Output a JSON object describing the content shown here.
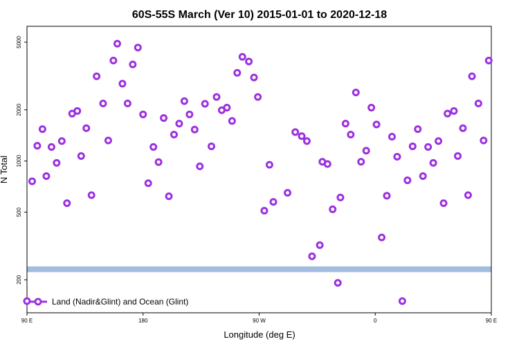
{
  "chart_data": {
    "type": "scatter",
    "title": "60S-55S March (Ver 10)   2015-01-01 to 2020-12-18",
    "xlabel": "Longitude (deg E)",
    "ylabel": "N Total",
    "y_scale": "log",
    "xlim": [
      90,
      450
    ],
    "ylim": [
      128,
      6200
    ],
    "x_ticks": [
      {
        "value": 90,
        "label": "90 E"
      },
      {
        "value": 180,
        "label": "180"
      },
      {
        "value": 270,
        "label": "90 W"
      },
      {
        "value": 360,
        "label": "0"
      },
      {
        "value": 450,
        "label": "90 E"
      },
      {
        "value": 540,
        "label": "180"
      }
    ],
    "y_ticks": [
      {
        "value": 200,
        "label": "200"
      },
      {
        "value": 500,
        "label": "500"
      },
      {
        "value": 1000,
        "label": "1000"
      },
      {
        "value": 2000,
        "label": "2000"
      },
      {
        "value": 5000,
        "label": "5000"
      }
    ],
    "grid": false,
    "band": {
      "low": 222,
      "high": 240,
      "color": "#a3bde0"
    },
    "marker_color": "#9b30e0",
    "legend": {
      "label": "Land (Nadir&Glint) and Ocean (Glint)",
      "position": "bottom-left"
    },
    "series": [
      {
        "name": "Land (Nadir&Glint) and Ocean (Glint)",
        "points": [
          [
            90,
            150
          ],
          [
            94,
            760
          ],
          [
            98,
            1230
          ],
          [
            102,
            1540
          ],
          [
            105,
            815
          ],
          [
            109,
            1210
          ],
          [
            113,
            975
          ],
          [
            117,
            1310
          ],
          [
            121,
            565
          ],
          [
            125,
            1900
          ],
          [
            129,
            1970
          ],
          [
            132,
            1070
          ],
          [
            136,
            1560
          ],
          [
            140,
            630
          ],
          [
            144,
            3150
          ],
          [
            149,
            2180
          ],
          [
            153,
            1320
          ],
          [
            157,
            3900
          ],
          [
            160,
            4900
          ],
          [
            164,
            2850
          ],
          [
            168,
            2180
          ],
          [
            172,
            3700
          ],
          [
            176,
            4650
          ],
          [
            180,
            1880
          ],
          [
            184,
            740
          ],
          [
            188,
            1210
          ],
          [
            192,
            985
          ],
          [
            196,
            1790
          ],
          [
            200,
            620
          ],
          [
            204,
            1430
          ],
          [
            208,
            1660
          ],
          [
            212,
            2250
          ],
          [
            216,
            1880
          ],
          [
            220,
            1530
          ],
          [
            224,
            930
          ],
          [
            228,
            2170
          ],
          [
            233,
            1220
          ],
          [
            237,
            2380
          ],
          [
            241,
            1990
          ],
          [
            245,
            2060
          ],
          [
            249,
            1720
          ],
          [
            253,
            3300
          ],
          [
            257,
            4100
          ],
          [
            262,
            3850
          ],
          [
            266,
            3100
          ],
          [
            269,
            2380
          ],
          [
            274,
            510
          ],
          [
            278,
            950
          ],
          [
            281,
            575
          ],
          [
            292,
            650
          ],
          [
            298,
            1480
          ],
          [
            303,
            1400
          ],
          [
            307,
            1310
          ],
          [
            311,
            275
          ],
          [
            317,
            320
          ],
          [
            319,
            990
          ],
          [
            323,
            960
          ],
          [
            327,
            520
          ],
          [
            331,
            192
          ],
          [
            333,
            610
          ],
          [
            337,
            1660
          ],
          [
            341,
            1430
          ],
          [
            345,
            2530
          ],
          [
            349,
            990
          ],
          [
            353,
            1150
          ],
          [
            357,
            2060
          ],
          [
            361,
            1640
          ],
          [
            365,
            355
          ],
          [
            369,
            625
          ],
          [
            373,
            1390
          ],
          [
            377,
            1060
          ],
          [
            381,
            150
          ],
          [
            385,
            770
          ],
          [
            389,
            1220
          ],
          [
            393,
            1540
          ],
          [
            397,
            815
          ],
          [
            401,
            1210
          ],
          [
            405,
            975
          ],
          [
            409,
            1310
          ],
          [
            413,
            565
          ],
          [
            416,
            1900
          ],
          [
            421,
            1970
          ],
          [
            424,
            1070
          ],
          [
            428,
            1560
          ],
          [
            432,
            630
          ],
          [
            435,
            3150
          ],
          [
            440,
            2180
          ],
          [
            444,
            1320
          ],
          [
            448,
            3900
          ]
        ]
      }
    ]
  }
}
